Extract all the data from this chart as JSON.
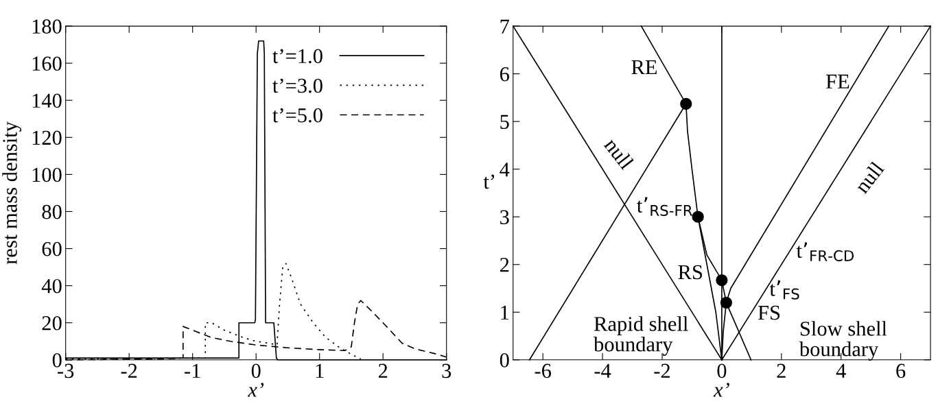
{
  "chart_data": [
    {
      "type": "line",
      "xlabel": "x’",
      "ylabel": "rest mass density",
      "xlim": [
        -3,
        3
      ],
      "ylim": [
        0,
        180
      ],
      "xticks": [
        -3,
        -2,
        -1,
        0,
        1,
        2,
        3
      ],
      "yticks": [
        0,
        20,
        40,
        60,
        80,
        100,
        120,
        140,
        160,
        180
      ],
      "grid": false,
      "legend": "top right",
      "marker": "none",
      "series": [
        {
          "name": "t’=1.0",
          "color": "#000000",
          "line_style": "solid",
          "x": [
            -3,
            -1.5,
            -0.27,
            -0.27,
            -0.02,
            -0.01,
            0.02,
            0.04,
            0.12,
            0.13,
            0.15,
            0.28,
            0.32,
            0.34,
            3
          ],
          "values": [
            1,
            1,
            1,
            20,
            20,
            22,
            165,
            172,
            172,
            165,
            20,
            20,
            1,
            0,
            0
          ]
        },
        {
          "name": "t’=3.0",
          "color": "#000000",
          "line_style": "dotted",
          "x": [
            -3,
            -0.8,
            -0.8,
            -0.7,
            -0.5,
            -0.2,
            0,
            0.2,
            0.33,
            0.37,
            0.42,
            0.47,
            0.55,
            0.7,
            0.9,
            1.1,
            1.3,
            1.5,
            1.65
          ],
          "values": [
            0.5,
            1,
            20,
            20,
            16,
            12,
            10,
            9,
            8,
            30,
            50,
            52,
            45,
            30,
            20,
            12,
            7,
            3,
            0.5
          ]
        },
        {
          "name": "t’=5.0",
          "color": "#000000",
          "line_style": "dashed",
          "x": [
            -3,
            -1.5,
            -1.15,
            -1.15,
            -1.0,
            -0.7,
            -0.4,
            0,
            0.5,
            1.0,
            1.4,
            1.5,
            1.55,
            1.6,
            1.65,
            1.8,
            2.0,
            2.3,
            2.5,
            2.8,
            3.0
          ],
          "values": [
            0,
            0.5,
            1,
            18,
            16,
            12,
            10,
            8,
            6.5,
            5.5,
            5,
            7,
            20,
            30,
            32,
            27,
            20,
            9,
            6,
            3.5,
            1.5
          ]
        }
      ]
    },
    {
      "type": "line",
      "xlabel": "x’",
      "ylabel": "t’",
      "xlim": [
        -7,
        7
      ],
      "ylim": [
        0,
        7
      ],
      "xticks": [
        -6,
        -4,
        -2,
        0,
        2,
        4,
        6
      ],
      "yticks": [
        0,
        1,
        2,
        3,
        4,
        5,
        6,
        7
      ],
      "marker": "none",
      "ref_lines": [
        {
          "axis": "x",
          "value": 0,
          "color": "#000000",
          "line_style": "solid"
        }
      ],
      "series": [
        {
          "color": "#000000",
          "line_style": "solid",
          "x": [
            -7,
            0
          ],
          "values": [
            7,
            0
          ]
        },
        {
          "color": "#000000",
          "line_style": "solid",
          "x": [
            -6.45,
            -1.2
          ],
          "values": [
            0,
            5.37
          ]
        },
        {
          "color": "#000000",
          "line_style": "solid",
          "x": [
            -1.2,
            -2.7
          ],
          "values": [
            5.37,
            7
          ]
        },
        {
          "color": "#000000",
          "line_style": "solid",
          "x": [
            0,
            -0.2,
            -0.5,
            -0.8,
            -1.0,
            -1.15,
            -1.2
          ],
          "values": [
            0,
            1.0,
            2.0,
            3.0,
            4.0,
            4.8,
            5.37
          ]
        },
        {
          "color": "#000000",
          "line_style": "solid",
          "x": [
            -0.8,
            -0.5,
            0,
            0.15,
            0.98
          ],
          "values": [
            3.0,
            2.2,
            1.67,
            1.2,
            0
          ]
        },
        {
          "color": "#000000",
          "line_style": "solid",
          "x": [
            0,
            0.05,
            0.15,
            0.3,
            5.6
          ],
          "values": [
            0,
            0.6,
            1.2,
            1.5,
            7
          ]
        },
        {
          "color": "#000000",
          "line_style": "solid",
          "x": [
            0,
            7
          ],
          "values": [
            0,
            7
          ]
        },
        {
          "type": "scatter",
          "marker": "circle",
          "color": "#000000",
          "x": [
            -1.2,
            -0.8,
            0,
            0.15
          ],
          "values": [
            5.37,
            3.0,
            1.67,
            1.2
          ]
        }
      ],
      "annotations": [
        "RE",
        "FE",
        "null",
        "null",
        "t’$_{RS-FR}$",
        "t’$_{FR-CD}$",
        "t’$_{FS}$",
        "RS",
        "FS",
        "Rapid shell\nboundary",
        "Slow shell\nboundary"
      ]
    }
  ]
}
